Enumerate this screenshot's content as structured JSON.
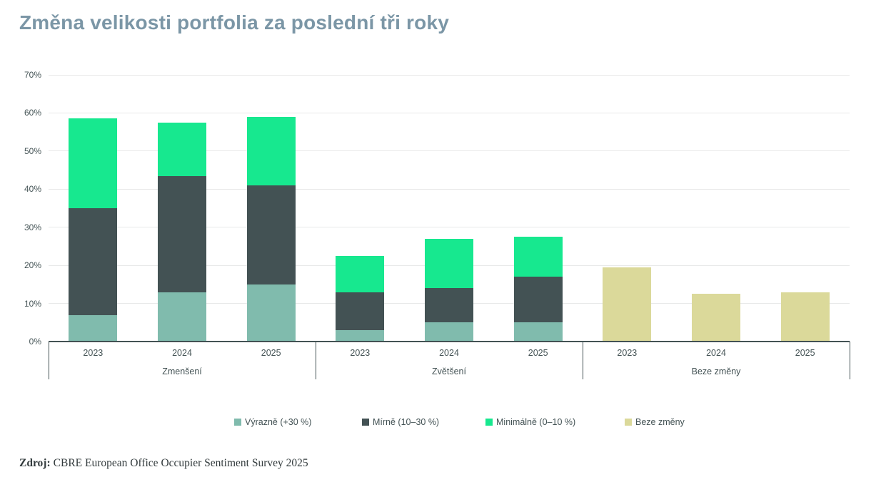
{
  "title": "Změna velikosti portfolia za poslední tři roky",
  "source": {
    "label": "Zdroj:",
    "text": "CBRE European Office Occupier Sentiment Survey 2025"
  },
  "colors": {
    "title": "#7B96A6",
    "axis_text": "#435254",
    "gridline": "#E8E9E9",
    "axis_line": "#435254",
    "series_vyrazne": "#80BBAD",
    "series_mirne": "#435254",
    "series_minimalne": "#17E88F",
    "series_beze_zmeny": "#DBD99A"
  },
  "chart_data": {
    "type": "bar",
    "stacked": true,
    "title": "Změna velikosti portfolia za poslední tři roky",
    "xlabel": "",
    "ylabel": "",
    "ylim": [
      0,
      70
    ],
    "y_tick_step": 10,
    "y_tick_suffix": "%",
    "grid": true,
    "legend_position": "bottom",
    "groups": [
      {
        "label": "Zmenšení",
        "categories": [
          "2023",
          "2024",
          "2025"
        ]
      },
      {
        "label": "Zvětšení",
        "categories": [
          "2023",
          "2024",
          "2025"
        ]
      },
      {
        "label": "Beze změny",
        "categories": [
          "2023",
          "2024",
          "2025"
        ]
      }
    ],
    "series": [
      {
        "name": "Výrazně (+30 %)",
        "color": "#80BBAD",
        "values": [
          [
            7,
            13,
            15
          ],
          [
            3,
            5,
            5
          ],
          [
            0,
            0,
            0
          ]
        ]
      },
      {
        "name": "Mírně (10–30 %)",
        "color": "#435254",
        "values": [
          [
            28,
            30.5,
            26
          ],
          [
            10,
            9,
            12
          ],
          [
            0,
            0,
            0
          ]
        ]
      },
      {
        "name": "Minimálně (0–10 %)",
        "color": "#17E88F",
        "values": [
          [
            23.5,
            14,
            18
          ],
          [
            9.5,
            13,
            10.5
          ],
          [
            0,
            0,
            0
          ]
        ]
      },
      {
        "name": "Beze změny",
        "color": "#DBD99A",
        "values": [
          [
            0,
            0,
            0
          ],
          [
            0,
            0,
            0
          ],
          [
            19.5,
            12.5,
            13
          ]
        ]
      }
    ],
    "stack_totals": [
      [
        58.5,
        57.5,
        59
      ],
      [
        22.5,
        27,
        27.5
      ],
      [
        19.5,
        12.5,
        13
      ]
    ]
  }
}
